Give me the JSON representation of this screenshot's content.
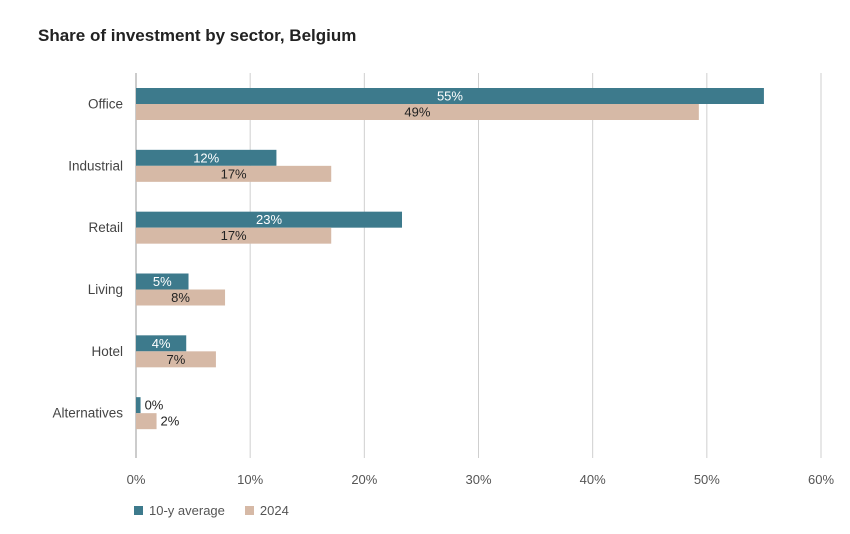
{
  "title": "Share of investment by sector, Belgium",
  "chart_data": {
    "type": "bar",
    "orientation": "horizontal",
    "categories": [
      "Office",
      "Industrial",
      "Retail",
      "Living",
      "Hotel",
      "Alternatives"
    ],
    "series": [
      {
        "name": "10-y average",
        "color": "#3d7a8c",
        "values": [
          55,
          12.3,
          23.3,
          4.6,
          4.4,
          0.4
        ],
        "labels": [
          "55%",
          "12%",
          "23%",
          "5%",
          "4%",
          "0%"
        ]
      },
      {
        "name": "2024",
        "color": "#d6b9a6",
        "values": [
          49.3,
          17.1,
          17.1,
          7.8,
          7.0,
          1.8
        ],
        "labels": [
          "49%",
          "17%",
          "17%",
          "8%",
          "7%",
          "2%"
        ]
      }
    ],
    "xlim": [
      0,
      60
    ],
    "xticks": [
      0,
      10,
      20,
      30,
      40,
      50,
      60
    ],
    "xtick_labels": [
      "0%",
      "10%",
      "20%",
      "30%",
      "40%",
      "50%",
      "60%"
    ],
    "grid": "vertical",
    "legend_position": "bottom-left"
  }
}
